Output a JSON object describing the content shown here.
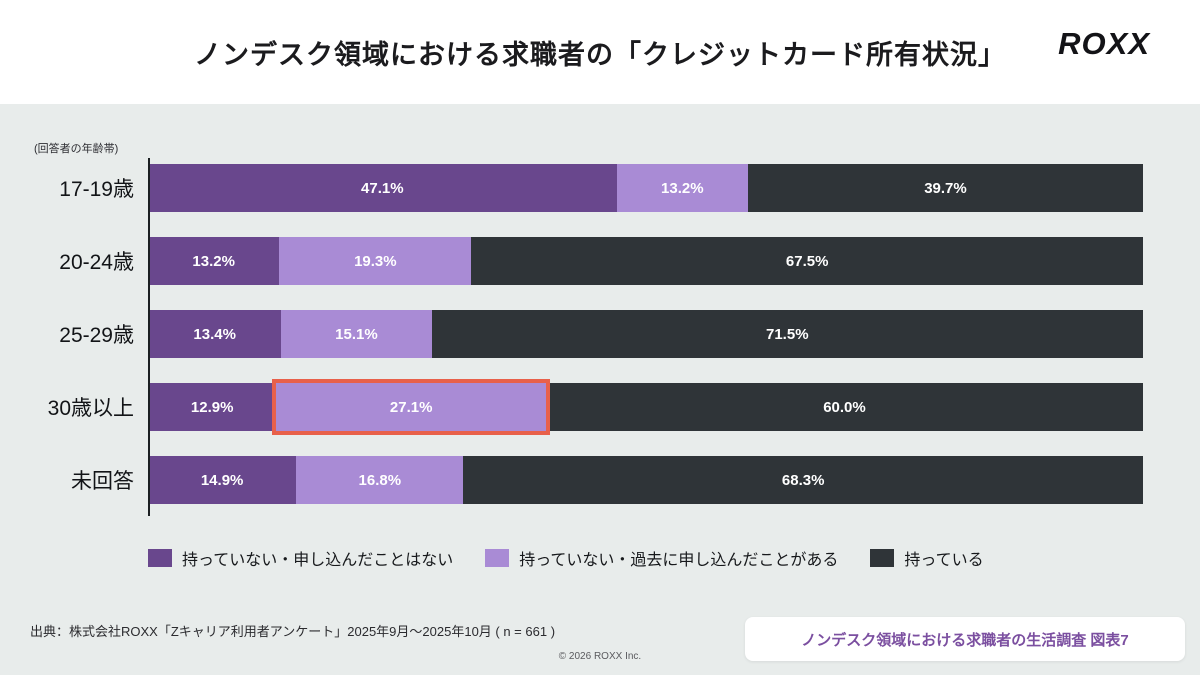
{
  "header": {
    "title": "ノンデスク領域における求職者の「クレジットカード所有状況」",
    "logo": "ROXX"
  },
  "chart_data": {
    "type": "bar",
    "orientation": "horizontal",
    "stacked": true,
    "axis_note": "(回答者の年齢帯)",
    "categories": [
      "17-19歳",
      "20-24歳",
      "25-29歳",
      "30歳以上",
      "未回答"
    ],
    "series": [
      {
        "name": "持っていない・申し込んだことはない",
        "color": "#69478d",
        "values": [
          47.1,
          13.2,
          13.4,
          12.9,
          14.9
        ]
      },
      {
        "name": "持っていない・過去に申し込んだことがある",
        "color": "#a98bd5",
        "values": [
          13.2,
          19.3,
          15.1,
          27.1,
          16.8
        ]
      },
      {
        "name": "持っている",
        "color": "#2f3438",
        "values": [
          39.7,
          67.5,
          71.5,
          60.0,
          68.3
        ]
      }
    ],
    "value_suffix": "%",
    "xlim": [
      0,
      100
    ],
    "legend_position": "bottom",
    "highlight": {
      "category_index": 3,
      "series_index": 1,
      "color": "#e8604a"
    }
  },
  "footer": {
    "source": "出典：株式会社ROXX「Zキャリア利用者アンケート」2025年9月〜2025年10月 ( n = 661 )",
    "copyright": "© 2026 ROXX Inc.",
    "badge": "ノンデスク領域における求職者の生活調査 図表7"
  }
}
